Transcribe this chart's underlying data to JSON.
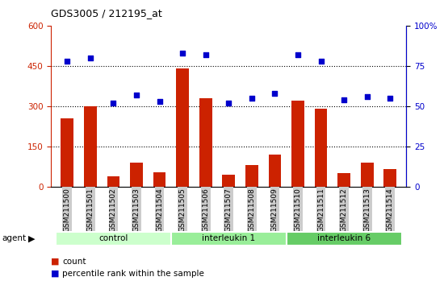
{
  "title": "GDS3005 / 212195_at",
  "samples": [
    "GSM211500",
    "GSM211501",
    "GSM211502",
    "GSM211503",
    "GSM211504",
    "GSM211505",
    "GSM211506",
    "GSM211507",
    "GSM211508",
    "GSM211509",
    "GSM211510",
    "GSM211511",
    "GSM211512",
    "GSM211513",
    "GSM211514"
  ],
  "counts": [
    255,
    300,
    40,
    90,
    55,
    440,
    330,
    45,
    80,
    120,
    320,
    290,
    50,
    90,
    65
  ],
  "percentile": [
    78,
    80,
    52,
    57,
    53,
    83,
    82,
    52,
    55,
    58,
    82,
    78,
    54,
    56,
    55
  ],
  "bar_color": "#cc2200",
  "dot_color": "#0000cc",
  "ylim_left": [
    0,
    600
  ],
  "ylim_right": [
    0,
    100
  ],
  "yticks_left": [
    0,
    150,
    300,
    450,
    600
  ],
  "yticks_right": [
    0,
    25,
    50,
    75,
    100
  ],
  "ylabel_left_color": "#cc2200",
  "ylabel_right_color": "#0000cc",
  "groups": [
    {
      "label": "control",
      "start": 0,
      "end": 4,
      "color": "#ccffcc"
    },
    {
      "label": "interleukin 1",
      "start": 5,
      "end": 9,
      "color": "#99ee99"
    },
    {
      "label": "interleukin 6",
      "start": 10,
      "end": 14,
      "color": "#66cc66"
    }
  ],
  "agent_label": "agent",
  "legend_count_label": "count",
  "legend_pct_label": "percentile rank within the sample",
  "tick_label_bg": "#cccccc",
  "hgrid_vals": [
    150,
    300,
    450
  ]
}
